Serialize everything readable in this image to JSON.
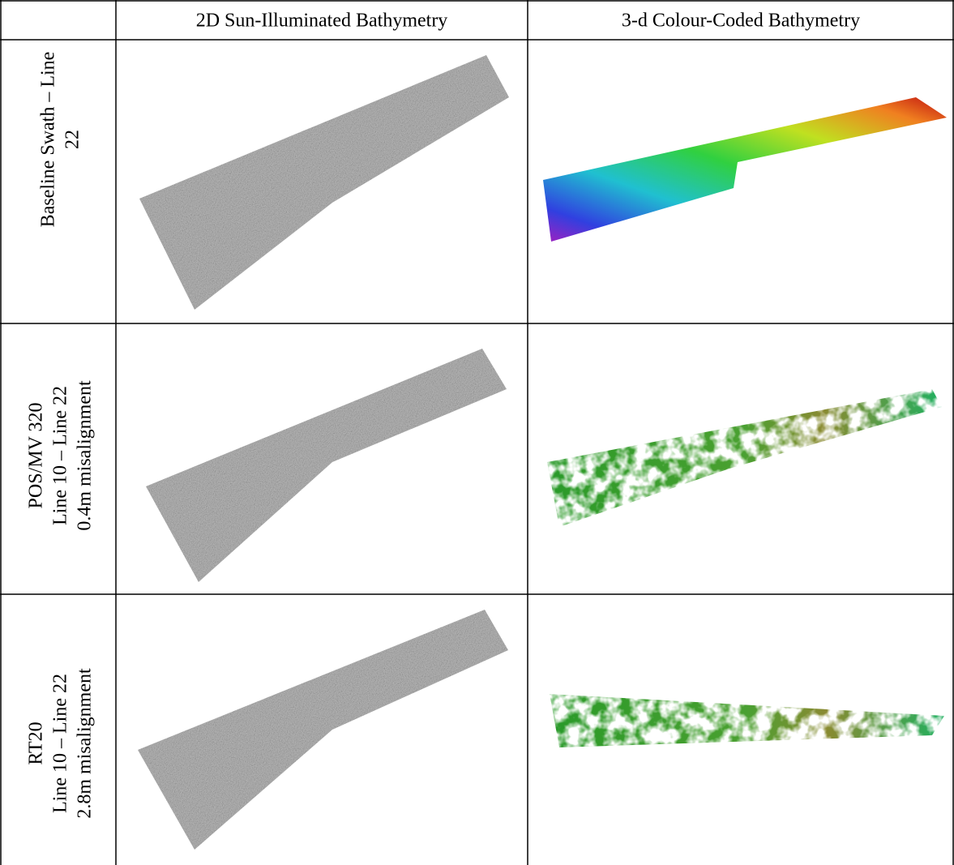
{
  "table": {
    "header": [
      "2D Sun-Illuminated Bathymetry",
      "3-d Colour-Coded Bathymetry"
    ],
    "rows": [
      {
        "label": [
          "Baseline Swath – Line",
          "22"
        ]
      },
      {
        "label": [
          "POS/MV 320",
          "Line 10 – Line 22",
          "0.4m misalignment"
        ]
      },
      {
        "label": [
          "RT20",
          "Line 10 – Line 22",
          "2.8m misalignment"
        ]
      }
    ]
  }
}
